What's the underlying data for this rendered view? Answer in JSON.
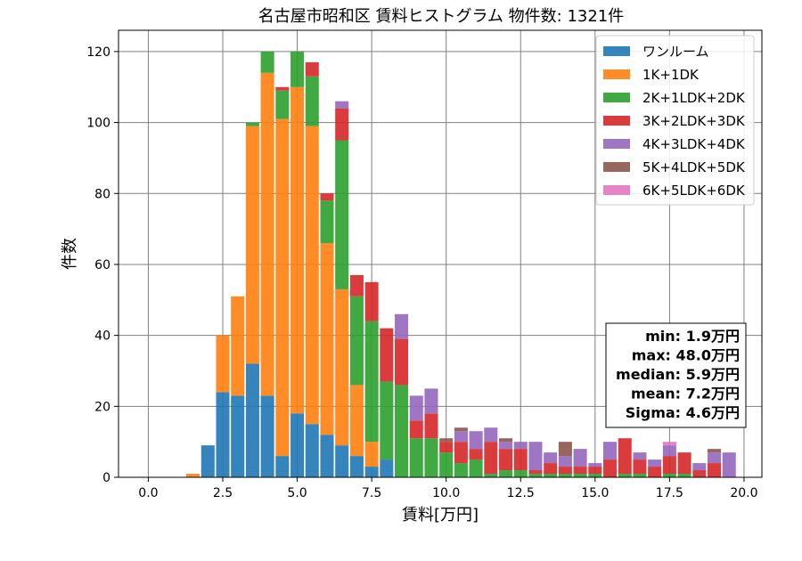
{
  "chart_data": {
    "type": "bar",
    "title": "名古屋市昭和区 賃料ヒストグラム 物件数: 1321件",
    "xlabel": "賃料[万円]",
    "ylabel": "件数",
    "xlim": [
      -1.0,
      20.6
    ],
    "ylim": [
      0,
      126
    ],
    "xticks": [
      0.0,
      2.5,
      5.0,
      7.5,
      10.0,
      12.5,
      15.0,
      17.5,
      20.0
    ],
    "xtick_labels": [
      "0.0",
      "2.5",
      "5.0",
      "7.5",
      "10.0",
      "12.5",
      "15.0",
      "17.5",
      "20.0"
    ],
    "yticks": [
      0,
      20,
      40,
      60,
      80,
      100,
      120
    ],
    "ytick_labels": [
      "0",
      "20",
      "40",
      "60",
      "80",
      "100",
      "120"
    ],
    "grid": true,
    "stacked": true,
    "bin_width": 0.5,
    "legend_position": "top-right",
    "x": [
      1.5,
      2.0,
      2.5,
      3.0,
      3.5,
      4.0,
      4.5,
      5.0,
      5.5,
      6.0,
      6.5,
      7.0,
      7.5,
      8.0,
      8.5,
      9.0,
      9.5,
      10.0,
      10.5,
      11.0,
      11.5,
      12.0,
      12.5,
      13.0,
      13.5,
      14.0,
      14.5,
      15.0,
      15.5,
      16.0,
      16.5,
      17.0,
      17.5,
      18.0,
      18.5,
      19.0,
      19.5
    ],
    "series": [
      {
        "name": "ワンルーム",
        "color": "#1f77b4",
        "values": [
          0,
          9,
          24,
          23,
          32,
          23,
          6,
          18,
          15,
          12,
          9,
          6,
          3,
          5,
          0,
          0,
          0,
          0,
          0,
          0,
          0,
          0,
          0,
          0,
          0,
          0,
          0,
          0,
          0,
          0,
          0,
          0,
          0,
          0,
          0,
          0,
          0
        ]
      },
      {
        "name": "1K+1DK",
        "color": "#ff7f0e",
        "values": [
          1,
          0,
          16,
          28,
          67,
          91,
          95,
          92,
          84,
          54,
          44,
          20,
          7,
          0,
          0,
          0,
          0,
          0,
          0,
          0,
          0,
          0,
          0,
          0,
          0,
          0,
          0,
          0,
          0,
          0,
          0,
          0,
          0,
          0,
          0,
          0,
          0
        ]
      },
      {
        "name": "2K+1LDK+2DK",
        "color": "#2ca02c",
        "values": [
          0,
          0,
          0,
          0,
          1,
          6,
          8,
          10,
          14,
          12,
          42,
          25,
          34,
          22,
          26,
          11,
          11,
          7,
          4,
          5,
          1,
          2,
          2,
          1,
          1,
          1,
          1,
          1,
          0,
          1,
          1,
          0,
          1,
          1,
          0,
          0,
          0
        ]
      },
      {
        "name": "3K+2LDK+3DK",
        "color": "#d62728",
        "values": [
          0,
          0,
          0,
          0,
          0,
          0,
          1,
          0,
          4,
          2,
          9,
          6,
          11,
          15,
          13,
          5,
          7,
          3,
          6,
          3,
          9,
          6,
          6,
          1,
          3,
          2,
          2,
          2,
          5,
          10,
          4,
          3,
          5,
          6,
          2,
          4,
          0
        ]
      },
      {
        "name": "4K+3LDK+4DK",
        "color": "#9467bd",
        "values": [
          0,
          0,
          0,
          0,
          0,
          0,
          0,
          0,
          0,
          0,
          2,
          0,
          0,
          0,
          7,
          7,
          7,
          0,
          3,
          5,
          4,
          2,
          2,
          8,
          3,
          3,
          5,
          1,
          5,
          0,
          2,
          2,
          3,
          0,
          2,
          3,
          7
        ]
      },
      {
        "name": "5K+4LDK+5DK",
        "color": "#8c564b",
        "values": [
          0,
          0,
          0,
          0,
          0,
          0,
          0,
          0,
          0,
          0,
          0,
          0,
          0,
          0,
          0,
          0,
          0,
          1,
          1,
          0,
          0,
          1,
          0,
          0,
          0,
          4,
          0,
          0,
          0,
          0,
          0,
          0,
          0,
          0,
          0,
          1,
          0
        ]
      },
      {
        "name": "6K+5LDK+6DK",
        "color": "#e377c2",
        "values": [
          0,
          0,
          0,
          0,
          0,
          0,
          0,
          0,
          0,
          0,
          0,
          0,
          0,
          0,
          0,
          0,
          0,
          0,
          0,
          0,
          0,
          0,
          0,
          0,
          0,
          0,
          0,
          0,
          0,
          0,
          0,
          0,
          1,
          0,
          0,
          0,
          0
        ]
      }
    ],
    "stats": [
      "min: 1.9万円",
      "max: 48.0万円",
      "median: 5.9万円",
      "mean: 7.2万円",
      "Sigma: 4.6万円"
    ]
  }
}
